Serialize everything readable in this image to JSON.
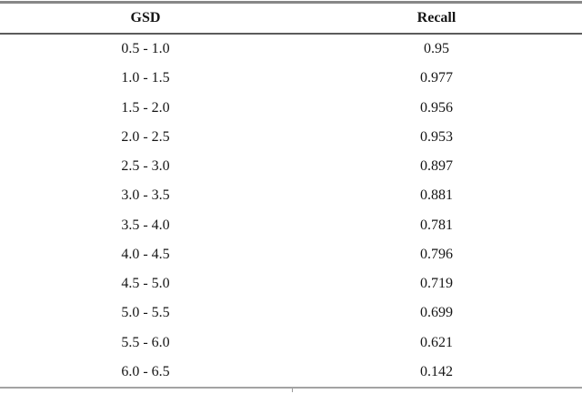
{
  "table": {
    "columns": {
      "col1": "GSD",
      "col2": "Recall"
    },
    "rows": [
      {
        "gsd": "0.5 - 1.0",
        "recall": "0.95"
      },
      {
        "gsd": "1.0 - 1.5",
        "recall": "0.977"
      },
      {
        "gsd": "1.5 - 2.0",
        "recall": "0.956"
      },
      {
        "gsd": "2.0 - 2.5",
        "recall": "0.953"
      },
      {
        "gsd": "2.5 - 3.0",
        "recall": "0.897"
      },
      {
        "gsd": "3.0 - 3.5",
        "recall": "0.881"
      },
      {
        "gsd": "3.5 - 4.0",
        "recall": "0.781"
      },
      {
        "gsd": "4.0 - 4.5",
        "recall": "0.796"
      },
      {
        "gsd": "4.5 - 5.0",
        "recall": "0.719"
      },
      {
        "gsd": "5.0 - 5.5",
        "recall": "0.699"
      },
      {
        "gsd": "5.5 - 6.0",
        "recall": "0.621"
      },
      {
        "gsd": "6.0 - 6.5",
        "recall": "0.142"
      }
    ]
  },
  "chart_data": {
    "type": "table",
    "columns": [
      "GSD",
      "Recall"
    ],
    "categories": [
      "0.5 - 1.0",
      "1.0 - 1.5",
      "1.5 - 2.0",
      "2.0 - 2.5",
      "2.5 - 3.0",
      "3.0 - 3.5",
      "3.5 - 4.0",
      "4.0 - 4.5",
      "4.5 - 5.0",
      "5.0 - 5.5",
      "5.5 - 6.0",
      "6.0 - 6.5"
    ],
    "values": [
      0.95,
      0.977,
      0.956,
      0.953,
      0.897,
      0.881,
      0.781,
      0.796,
      0.719,
      0.699,
      0.621,
      0.142
    ]
  },
  "colors": {
    "top_rule": "#878787",
    "header_rule": "#5c5c5c",
    "bottom_rule": "#a3a3a3",
    "text": "#161616",
    "background": "#ffffff"
  }
}
